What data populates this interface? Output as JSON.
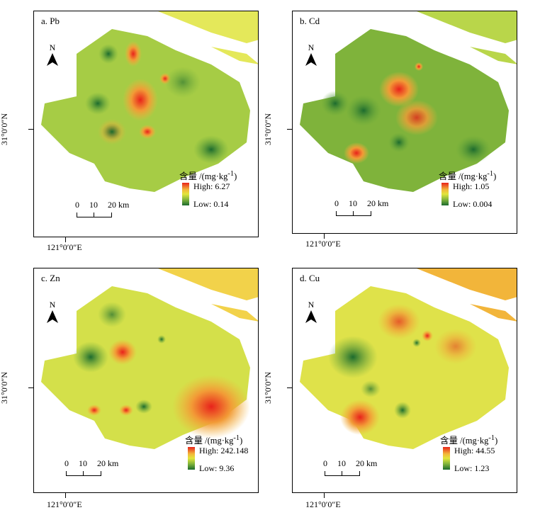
{
  "figure": {
    "panels": [
      {
        "label": "a. Pb",
        "legend_title": "含量 /(mg·kg",
        "legend_sup": "-1",
        "legend_close": ")",
        "high": "High: 6.27",
        "low": "Low: 0.14"
      },
      {
        "label": "b. Cd",
        "legend_title": "含量 /(mg·kg",
        "legend_sup": "-1",
        "legend_close": ")",
        "high": "High: 1.05",
        "low": "Low: 0.004"
      },
      {
        "label": "c. Zn",
        "legend_title": "含量 /(mg·kg",
        "legend_sup": "-1",
        "legend_close": ")",
        "high": "High: 242.148",
        "low": "Low: 9.36"
      },
      {
        "label": "d. Cu",
        "legend_title": "含量 /(mg·kg",
        "legend_sup": "-1",
        "legend_close": ")",
        "high": "High: 44.55",
        "low": "Low: 1.23"
      }
    ],
    "north": "N",
    "scale_labels": {
      "zero": "0",
      "ten": "10",
      "twenty": "20 km"
    },
    "latitude": "31°0′0″N",
    "longitude": "121°0′0″E",
    "colors": {
      "high": "#e8231b",
      "mid": "#e3e63b",
      "low": "#1c6b2e"
    }
  }
}
